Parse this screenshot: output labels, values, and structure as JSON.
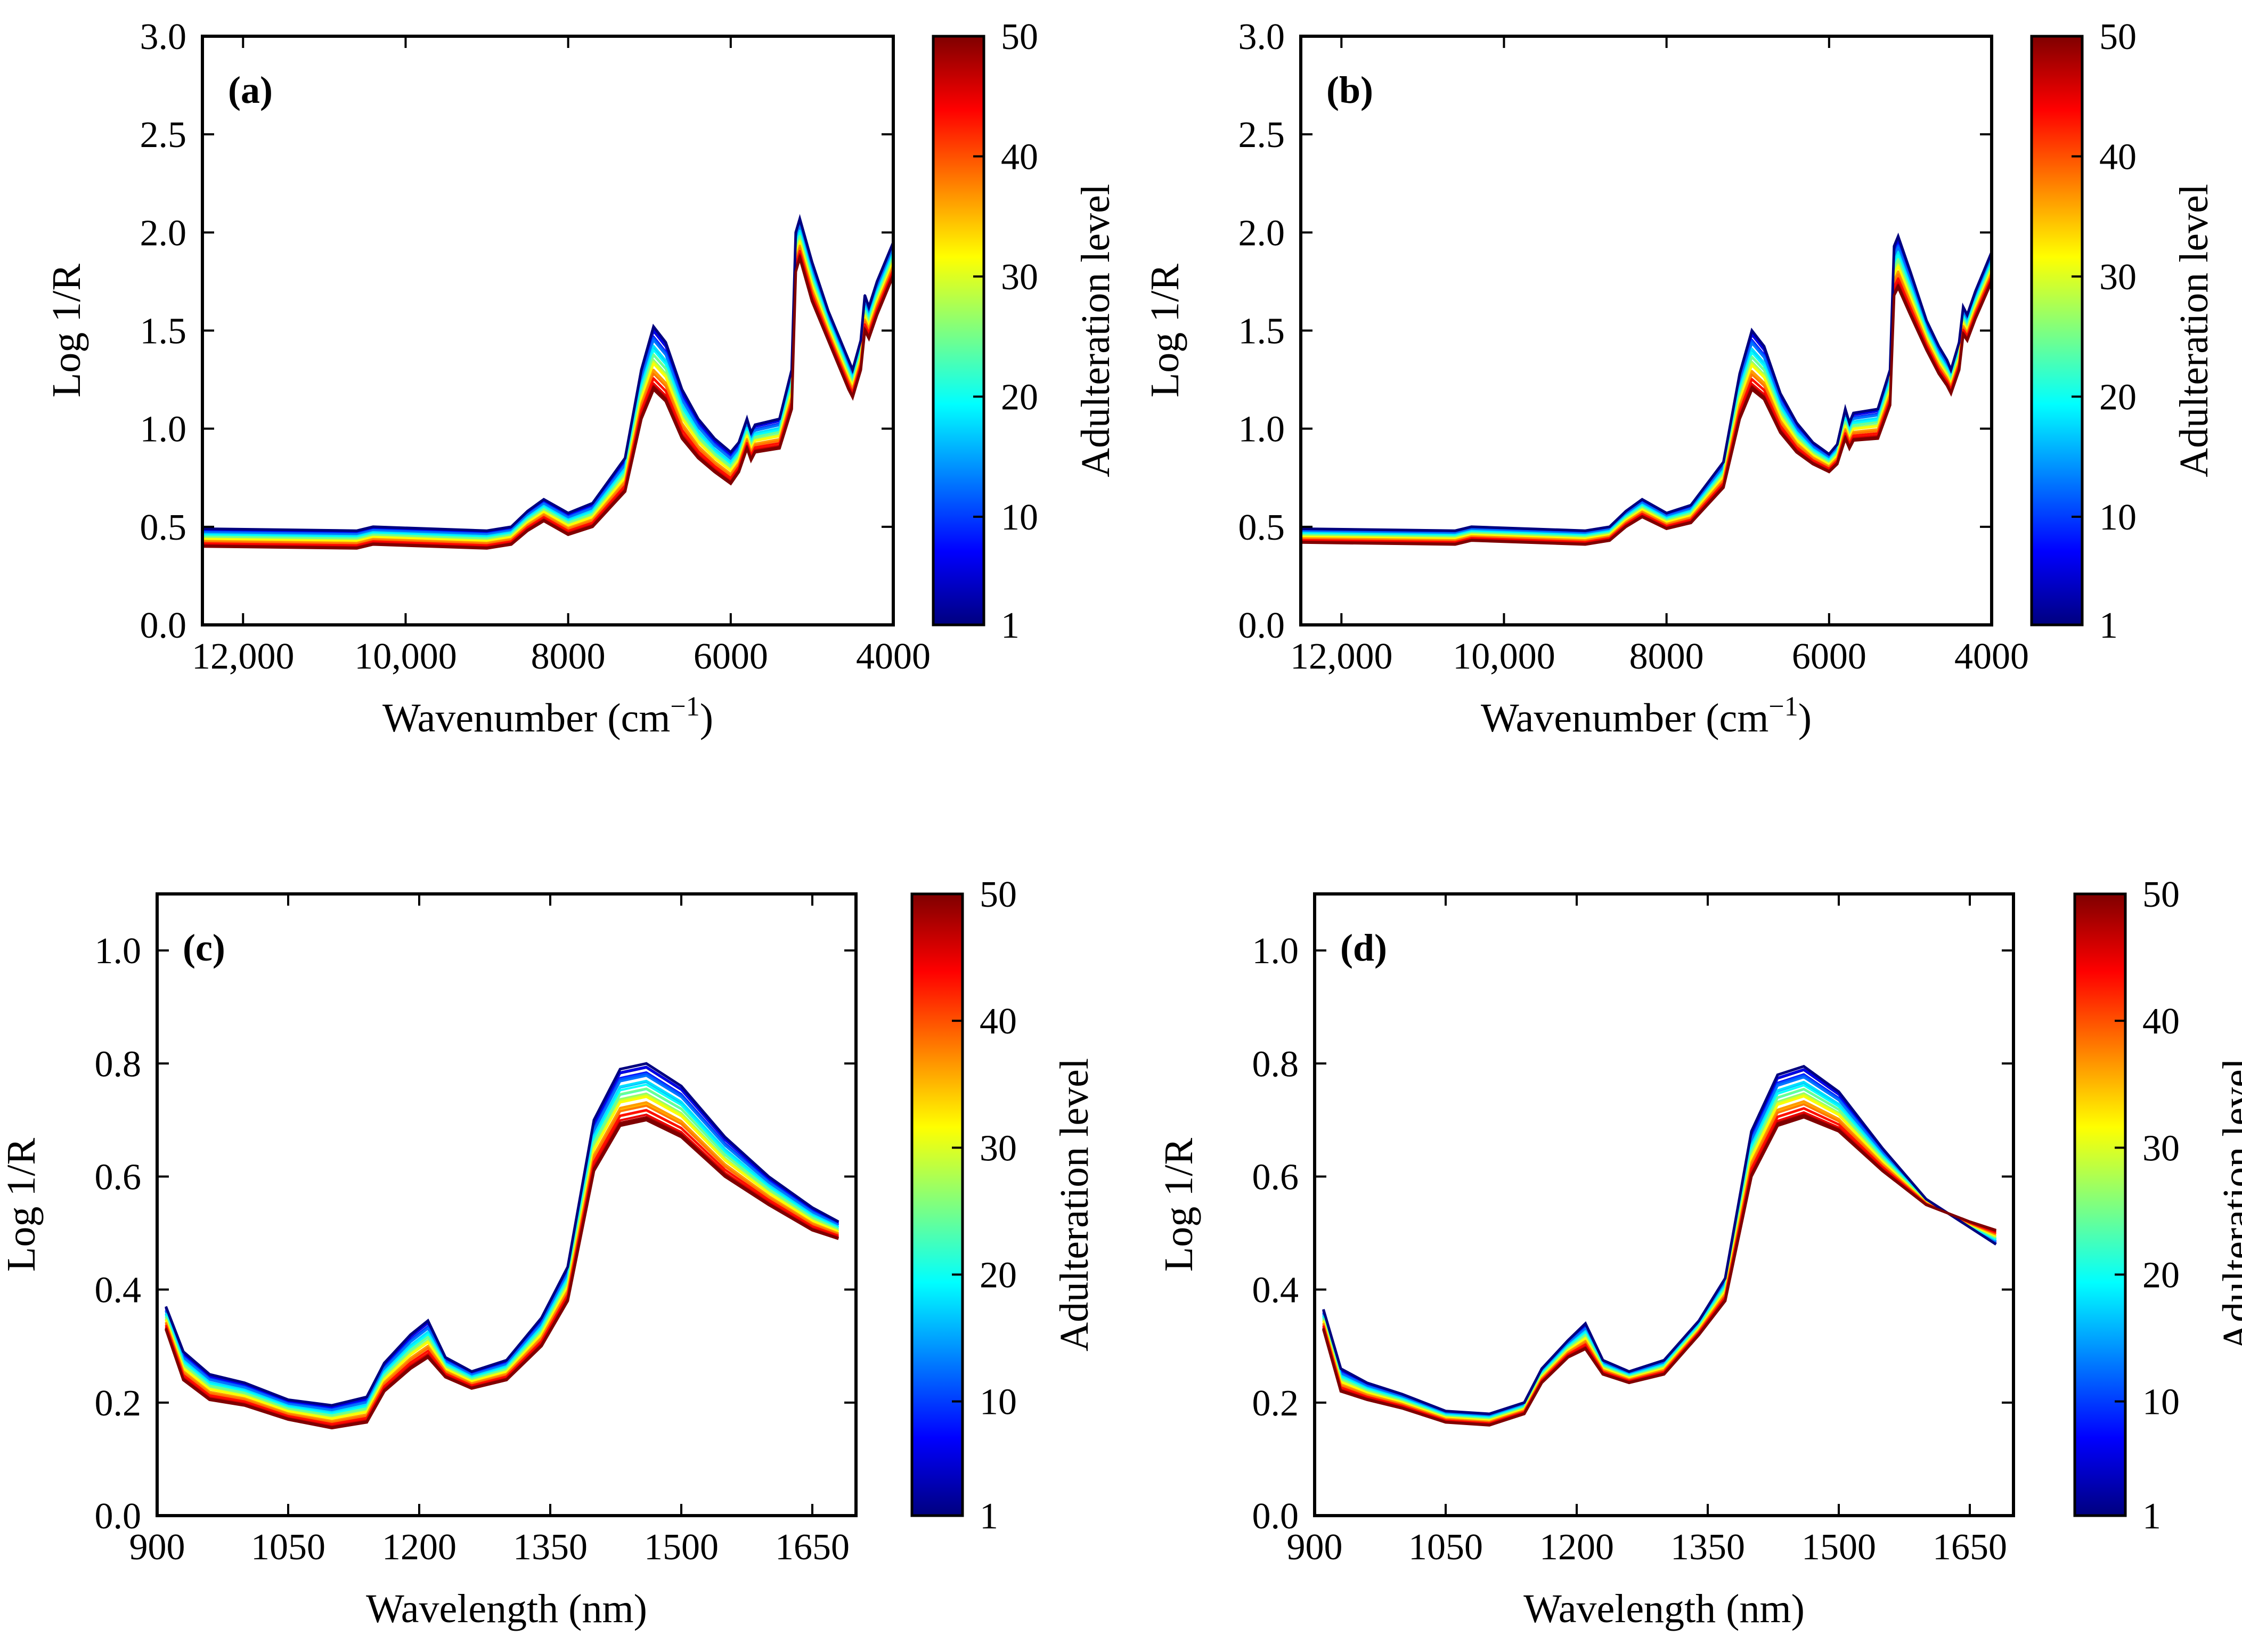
{
  "figure": {
    "colormap": [
      "#00007f",
      "#0000ff",
      "#007fff",
      "#00ffff",
      "#7fff7f",
      "#ffff00",
      "#ff7f00",
      "#ff0000",
      "#7f0000"
    ]
  },
  "chart_data": [
    {
      "type": "line",
      "panel_label": "(a)",
      "xlabel": "Wavenumber (cm",
      "xlabel_sup": "−1",
      "xlabel_tail": ")",
      "ylabel": "Log 1/R",
      "xlim": [
        12500,
        4000
      ],
      "ylim": [
        0.0,
        3.0
      ],
      "xticks": [
        12000,
        10000,
        8000,
        6000,
        4000
      ],
      "xtick_labels": [
        "12,000",
        "10,000",
        "8000",
        "6000",
        "4000"
      ],
      "yticks": [
        0.0,
        0.5,
        1.0,
        1.5,
        2.0,
        2.5,
        3.0
      ],
      "ytick_labels": [
        "0.0",
        "0.5",
        "1.0",
        "1.5",
        "2.0",
        "2.5",
        "3.0"
      ],
      "colorbar": {
        "label": "Adulteration level",
        "range": [
          1,
          50
        ],
        "tick_labels": [
          "1",
          "10",
          "20",
          "30",
          "40",
          "50"
        ],
        "ticks": [
          1,
          10,
          20,
          30,
          40,
          50
        ]
      },
      "series_low": {
        "name": "level 1",
        "x": [
          12500,
          10600,
          10400,
          9000,
          8700,
          8500,
          8300,
          8000,
          7700,
          7300,
          7100,
          6950,
          6800,
          6600,
          6400,
          6200,
          6000,
          5900,
          5800,
          5750,
          5700,
          5400,
          5250,
          5200,
          5150,
          5000,
          4800,
          4650,
          4550,
          4500,
          4400,
          4350,
          4300,
          4200,
          4000
        ],
        "values": [
          0.49,
          0.48,
          0.5,
          0.48,
          0.5,
          0.58,
          0.64,
          0.57,
          0.62,
          0.85,
          1.3,
          1.52,
          1.44,
          1.2,
          1.05,
          0.95,
          0.88,
          0.93,
          1.05,
          0.98,
          1.02,
          1.05,
          1.3,
          2.0,
          2.07,
          1.85,
          1.6,
          1.45,
          1.35,
          1.3,
          1.45,
          1.68,
          1.62,
          1.75,
          1.95
        ]
      },
      "series_high": {
        "name": "level 50",
        "x": [
          12500,
          10600,
          10400,
          9000,
          8700,
          8500,
          8300,
          8000,
          7700,
          7300,
          7100,
          6950,
          6800,
          6600,
          6400,
          6200,
          6000,
          5900,
          5800,
          5750,
          5700,
          5400,
          5250,
          5200,
          5150,
          5000,
          4800,
          4650,
          4550,
          4500,
          4400,
          4350,
          4300,
          4200,
          4000
        ],
        "values": [
          0.4,
          0.39,
          0.41,
          0.39,
          0.41,
          0.48,
          0.53,
          0.46,
          0.5,
          0.68,
          1.05,
          1.2,
          1.14,
          0.95,
          0.85,
          0.78,
          0.72,
          0.78,
          0.9,
          0.84,
          0.88,
          0.9,
          1.1,
          1.8,
          1.87,
          1.65,
          1.45,
          1.3,
          1.2,
          1.16,
          1.3,
          1.5,
          1.46,
          1.58,
          1.78
        ]
      }
    },
    {
      "type": "line",
      "panel_label": "(b)",
      "xlabel": "Wavenumber (cm",
      "xlabel_sup": "−1",
      "xlabel_tail": ")",
      "ylabel": "Log 1/R",
      "xlim": [
        12500,
        4000
      ],
      "ylim": [
        0.0,
        3.0
      ],
      "xticks": [
        12000,
        10000,
        8000,
        6000,
        4000
      ],
      "xtick_labels": [
        "12,000",
        "10,000",
        "8000",
        "6000",
        "4000"
      ],
      "yticks": [
        0.0,
        0.5,
        1.0,
        1.5,
        2.0,
        2.5,
        3.0
      ],
      "ytick_labels": [
        "0.0",
        "0.5",
        "1.0",
        "1.5",
        "2.0",
        "2.5",
        "3.0"
      ],
      "colorbar": {
        "label": "Adulteration level",
        "range": [
          1,
          50
        ],
        "tick_labels": [
          "1",
          "10",
          "20",
          "30",
          "40",
          "50"
        ],
        "ticks": [
          1,
          10,
          20,
          30,
          40,
          50
        ]
      },
      "series_low": {
        "name": "level 1",
        "x": [
          12500,
          10600,
          10400,
          9000,
          8700,
          8500,
          8300,
          8000,
          7700,
          7300,
          7100,
          6950,
          6800,
          6600,
          6400,
          6200,
          6000,
          5900,
          5800,
          5750,
          5700,
          5400,
          5250,
          5200,
          5150,
          5000,
          4800,
          4650,
          4550,
          4500,
          4400,
          4350,
          4300,
          4200,
          4000
        ],
        "values": [
          0.49,
          0.48,
          0.5,
          0.48,
          0.5,
          0.58,
          0.64,
          0.57,
          0.61,
          0.83,
          1.28,
          1.5,
          1.42,
          1.18,
          1.03,
          0.93,
          0.87,
          0.92,
          1.1,
          1.03,
          1.08,
          1.1,
          1.3,
          1.93,
          1.98,
          1.8,
          1.55,
          1.42,
          1.35,
          1.3,
          1.44,
          1.62,
          1.58,
          1.7,
          1.9
        ]
      },
      "series_high": {
        "name": "level 50",
        "x": [
          12500,
          10600,
          10400,
          9000,
          8700,
          8500,
          8300,
          8000,
          7700,
          7300,
          7100,
          6950,
          6800,
          6600,
          6400,
          6200,
          6000,
          5900,
          5800,
          5750,
          5700,
          5400,
          5250,
          5200,
          5150,
          5000,
          4800,
          4650,
          4550,
          4500,
          4400,
          4350,
          4300,
          4200,
          4000
        ],
        "values": [
          0.42,
          0.41,
          0.43,
          0.41,
          0.43,
          0.5,
          0.55,
          0.49,
          0.52,
          0.7,
          1.05,
          1.2,
          1.15,
          0.98,
          0.88,
          0.82,
          0.78,
          0.82,
          0.95,
          0.9,
          0.94,
          0.95,
          1.12,
          1.68,
          1.72,
          1.58,
          1.4,
          1.28,
          1.22,
          1.18,
          1.3,
          1.48,
          1.45,
          1.56,
          1.75
        ]
      }
    },
    {
      "type": "line",
      "panel_label": "(c)",
      "xlabel": "Wavelength (nm)",
      "xlabel_sup": "",
      "xlabel_tail": "",
      "ylabel": "Log 1/R",
      "xlim": [
        900,
        1700
      ],
      "ylim": [
        0.0,
        1.1
      ],
      "xticks": [
        900,
        1050,
        1200,
        1350,
        1500,
        1650
      ],
      "xtick_labels": [
        "900",
        "1050",
        "1200",
        "1350",
        "1500",
        "1650"
      ],
      "yticks": [
        0.0,
        0.2,
        0.4,
        0.6,
        0.8,
        1.0
      ],
      "ytick_labels": [
        "0.0",
        "0.2",
        "0.4",
        "0.6",
        "0.8",
        "1.0"
      ],
      "colorbar": {
        "label": "Adulteration level",
        "range": [
          1,
          50
        ],
        "tick_labels": [
          "1",
          "10",
          "20",
          "30",
          "40",
          "50"
        ],
        "ticks": [
          1,
          10,
          20,
          30,
          40,
          50
        ]
      },
      "series_low": {
        "name": "level 1",
        "x": [
          910,
          930,
          960,
          1000,
          1050,
          1100,
          1140,
          1160,
          1190,
          1210,
          1230,
          1260,
          1300,
          1340,
          1370,
          1400,
          1430,
          1460,
          1500,
          1550,
          1600,
          1650,
          1680
        ],
        "values": [
          0.37,
          0.29,
          0.25,
          0.235,
          0.205,
          0.195,
          0.21,
          0.27,
          0.32,
          0.345,
          0.28,
          0.255,
          0.275,
          0.35,
          0.44,
          0.7,
          0.79,
          0.8,
          0.76,
          0.67,
          0.6,
          0.545,
          0.52
        ]
      },
      "series_high": {
        "name": "level 50",
        "x": [
          910,
          930,
          960,
          1000,
          1050,
          1100,
          1140,
          1160,
          1190,
          1210,
          1230,
          1260,
          1300,
          1340,
          1370,
          1400,
          1430,
          1460,
          1500,
          1550,
          1600,
          1650,
          1680
        ],
        "values": [
          0.33,
          0.24,
          0.205,
          0.195,
          0.17,
          0.155,
          0.165,
          0.22,
          0.26,
          0.28,
          0.245,
          0.225,
          0.24,
          0.3,
          0.38,
          0.61,
          0.69,
          0.7,
          0.67,
          0.6,
          0.55,
          0.505,
          0.49
        ]
      }
    },
    {
      "type": "line",
      "panel_label": "(d)",
      "xlabel": "Wavelength (nm)",
      "xlabel_sup": "",
      "xlabel_tail": "",
      "ylabel": "Log 1/R",
      "xlim": [
        900,
        1700
      ],
      "ylim": [
        0.0,
        1.1
      ],
      "xticks": [
        900,
        1050,
        1200,
        1350,
        1500,
        1650
      ],
      "xtick_labels": [
        "900",
        "1050",
        "1200",
        "1350",
        "1500",
        "1650"
      ],
      "yticks": [
        0.0,
        0.2,
        0.4,
        0.6,
        0.8,
        1.0
      ],
      "ytick_labels": [
        "0.0",
        "0.2",
        "0.4",
        "0.6",
        "0.8",
        "1.0"
      ],
      "colorbar": {
        "label": "Adulteration level",
        "range": [
          1,
          50
        ],
        "tick_labels": [
          "1",
          "10",
          "20",
          "30",
          "40",
          "50"
        ],
        "ticks": [
          1,
          10,
          20,
          30,
          40,
          50
        ]
      },
      "series_low": {
        "name": "level 1",
        "x": [
          910,
          930,
          960,
          1000,
          1050,
          1100,
          1140,
          1160,
          1190,
          1210,
          1230,
          1260,
          1300,
          1340,
          1370,
          1400,
          1430,
          1460,
          1500,
          1550,
          1600,
          1650,
          1680
        ],
        "values": [
          0.365,
          0.26,
          0.235,
          0.215,
          0.185,
          0.18,
          0.2,
          0.26,
          0.31,
          0.34,
          0.275,
          0.255,
          0.275,
          0.345,
          0.42,
          0.68,
          0.78,
          0.795,
          0.75,
          0.65,
          0.56,
          0.51,
          0.48
        ]
      },
      "series_high": {
        "name": "level 50",
        "x": [
          910,
          930,
          960,
          1000,
          1050,
          1100,
          1140,
          1160,
          1190,
          1210,
          1230,
          1260,
          1300,
          1340,
          1370,
          1400,
          1430,
          1460,
          1500,
          1550,
          1600,
          1650,
          1680
        ],
        "values": [
          0.33,
          0.22,
          0.205,
          0.19,
          0.165,
          0.16,
          0.18,
          0.235,
          0.28,
          0.295,
          0.25,
          0.235,
          0.25,
          0.32,
          0.38,
          0.6,
          0.69,
          0.705,
          0.68,
          0.61,
          0.55,
          0.52,
          0.505
        ]
      }
    }
  ]
}
